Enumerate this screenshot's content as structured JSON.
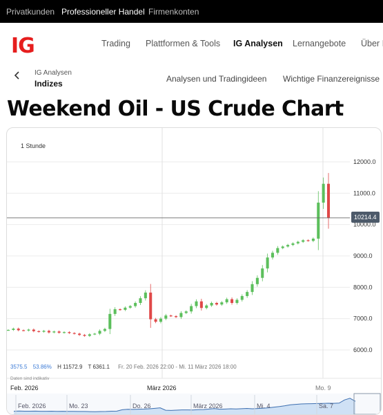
{
  "topbar": {
    "items": [
      {
        "label": "Privatkunden"
      },
      {
        "label": "Professioneller Handel"
      },
      {
        "label": "Firmenkonten"
      }
    ]
  },
  "logo": {
    "text": "IG"
  },
  "mainnav": {
    "items": [
      {
        "label": "Trading"
      },
      {
        "label": "Plattformen & Tools"
      },
      {
        "label": "IG Analysen"
      },
      {
        "label": "Lernangebote"
      },
      {
        "label": "Über IG"
      }
    ]
  },
  "breadcrumb": {
    "parent": "IG Analysen",
    "current": "Indizes",
    "back_icon": "chevron-left-icon"
  },
  "subnav": {
    "links": [
      {
        "label": "Analysen und Tradingideen"
      },
      {
        "label": "Wichtige Finanzereignisse"
      }
    ]
  },
  "page": {
    "title": "Weekend Oil - US Crude Chart"
  },
  "chart": {
    "interval": "1 Stunde",
    "current_price": "10214.4",
    "stats": {
      "change": "3575.5",
      "change_pct": "53.86%",
      "high": "H 11572.9",
      "low": "T 6361.1",
      "range": "Fr. 20 Feb. 2026 22:00 - Mi. 11 März 2026 18:00"
    },
    "indicative_note": "Daten sind indikativ",
    "month_labels": [
      "Feb. 2026",
      "März 2026",
      "Mo. 9"
    ],
    "navigator_labels": [
      "Feb. 2026",
      "Mo. 23",
      "Do. 26",
      "März 2026",
      "Mi. 4",
      "Sa. 7"
    ],
    "colors": {
      "up": "#5cbf5c",
      "down": "#e04848",
      "nav_fill": "#cfe1f5",
      "nav_line": "#3d6fb0"
    }
  },
  "chart_data": {
    "type": "line",
    "title": "Weekend Oil - US Crude Chart",
    "interval": "1 Stunde",
    "ylim": [
      6000,
      12000
    ],
    "yticks": [
      "12000.0",
      "11000.0",
      "10000.0",
      "9000.0",
      "8000.0",
      "7000.0",
      "6000.0"
    ],
    "x_labels": [
      "Feb. 2026",
      "März 2026",
      "Mo. 9"
    ],
    "current": 10214.4,
    "high": 11572.9,
    "low": 6361.1,
    "series": [
      {
        "values": [
          6640,
          6680,
          6630,
          6620,
          6650,
          6600,
          6580,
          6610,
          6560,
          6590,
          6550,
          6570,
          6540,
          6520,
          6480,
          6450,
          6500,
          6520,
          6610,
          6670,
          7150,
          7300,
          7280,
          7350,
          7400,
          7500,
          7650,
          7830,
          6980,
          6900,
          7000,
          7100,
          7080,
          7050,
          7180,
          7230,
          7400,
          7550,
          7340,
          7420,
          7500,
          7450,
          7520,
          7620,
          7500,
          7600,
          7720,
          7850,
          8100,
          8300,
          8600,
          8950,
          9100,
          9250,
          9300,
          9350,
          9400,
          9450,
          9500,
          9480,
          9550,
          10700,
          11300,
          10214.4
        ]
      }
    ]
  }
}
